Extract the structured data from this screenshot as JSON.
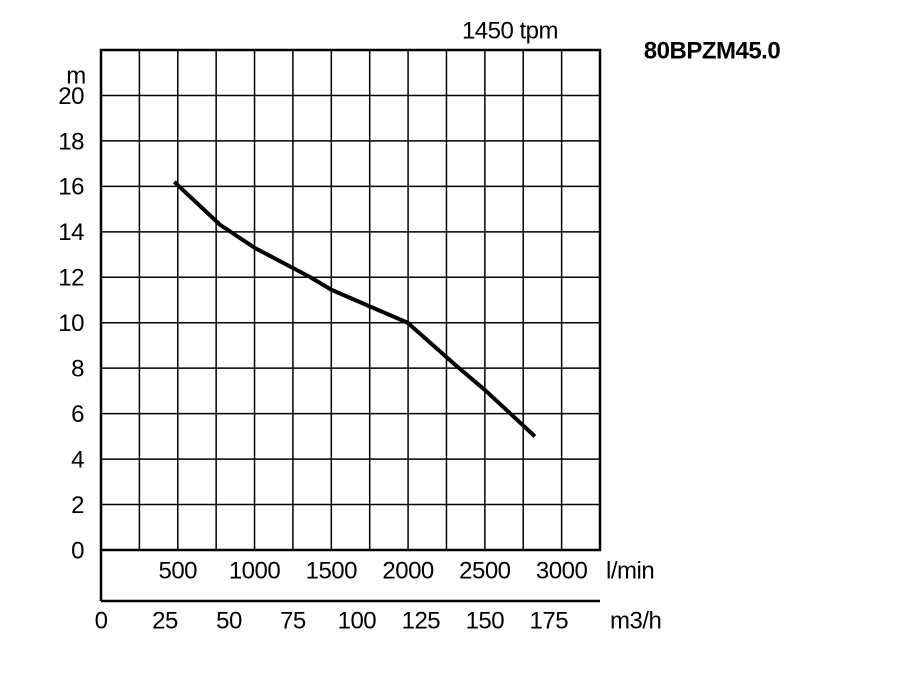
{
  "chart_data": {
    "type": "line",
    "title": "80BPZM45.0",
    "subtitle": "1450 tpm",
    "ylabel": "m",
    "xlabel": "l/min",
    "x2label": "m3/h",
    "xlim": [
      0,
      3250
    ],
    "xticks": [
      {
        "value": 250,
        "label": null
      },
      500,
      {
        "value": 750,
        "label": null
      },
      1000,
      {
        "value": 1250,
        "label": null
      },
      1500,
      {
        "value": 1750,
        "label": null
      },
      2000,
      {
        "value": 2250,
        "label": null
      },
      2500,
      {
        "value": 2750,
        "label": null
      },
      3000
    ],
    "x2lim": [
      0,
      195
    ],
    "x2ticks": [
      0,
      25,
      50,
      75,
      100,
      125,
      150,
      175
    ],
    "ylim": [
      0,
      22
    ],
    "yticks": [
      0,
      2,
      4,
      6,
      8,
      10,
      12,
      14,
      16,
      18,
      20
    ],
    "grid": true,
    "series": [
      {
        "color": "#000000",
        "x": [
          477,
          777,
          1000,
          1364,
          1500,
          1997,
          2298,
          2507,
          2826
        ],
        "values": [
          16.2,
          14.3,
          13.3,
          12.0,
          11.45,
          10.0,
          8.2,
          7.0,
          5.0
        ]
      }
    ]
  }
}
